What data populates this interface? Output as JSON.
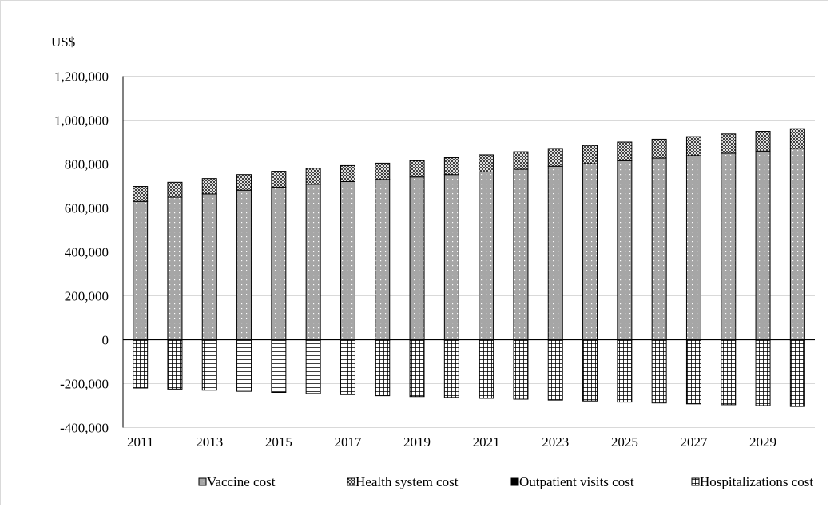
{
  "chart_data": {
    "type": "bar",
    "stacked": true,
    "title": "",
    "xlabel": "",
    "ylabel": "",
    "unit_label": "US$",
    "ylim": [
      -400000,
      1200000
    ],
    "ytick_values": [
      -400000,
      -200000,
      0,
      200000,
      400000,
      600000,
      800000,
      1000000,
      1200000
    ],
    "ytick_labels": [
      "-400,000",
      "-200,000",
      "0",
      "200,000",
      "400,000",
      "600,000",
      "800,000",
      "1,000,000",
      "1,200,000"
    ],
    "categories": [
      "2011",
      "2012",
      "2013",
      "2014",
      "2015",
      "2016",
      "2017",
      "2018",
      "2019",
      "2020",
      "2021",
      "2022",
      "2023",
      "2024",
      "2025",
      "2026",
      "2027",
      "2028",
      "2029",
      "2030"
    ],
    "xtick_labels": [
      "2011",
      "",
      "2013",
      "",
      "2015",
      "",
      "2017",
      "",
      "2019",
      "",
      "2021",
      "",
      "2023",
      "",
      "2025",
      "",
      "2027",
      "",
      "2029",
      ""
    ],
    "grid": "horizontal",
    "legend_position": "bottom",
    "series": [
      {
        "name": "Vaccine cost",
        "pattern": "dots-on-gray",
        "values": [
          630000,
          649000,
          664000,
          681000,
          695000,
          708000,
          720000,
          730000,
          741000,
          752000,
          764000,
          776000,
          790000,
          802000,
          815000,
          827000,
          839000,
          849000,
          859000,
          870000
        ]
      },
      {
        "name": "Health system cost",
        "pattern": "crosshatch",
        "values": [
          68000,
          68000,
          70000,
          71000,
          72000,
          73000,
          73000,
          74000,
          74000,
          77000,
          78000,
          80000,
          81000,
          83000,
          85000,
          86000,
          86000,
          88000,
          90000,
          91000
        ]
      },
      {
        "name": "Outpatient visits cost",
        "pattern": "solid-black",
        "values": [
          -3000,
          -3000,
          -3000,
          -3000,
          -3000,
          -3000,
          -3000,
          -3000,
          -3000,
          -3000,
          -3000,
          -3000,
          -3000,
          -3000,
          -3000,
          -3000,
          -3000,
          -3000,
          -3000,
          -3000
        ]
      },
      {
        "name": "Hospitalizations cost",
        "pattern": "grid",
        "values": [
          -217000,
          -222000,
          -227000,
          -232000,
          -237000,
          -242000,
          -247000,
          -252000,
          -256000,
          -260000,
          -264000,
          -268000,
          -272000,
          -276000,
          -281000,
          -285000,
          -289000,
          -293000,
          -297000,
          -301000
        ]
      }
    ],
    "colors": {
      "vaccine_fill": "#a6a6a6",
      "outline": "#000000",
      "gridline": "#d9d9d9",
      "axis": "#000000"
    }
  }
}
